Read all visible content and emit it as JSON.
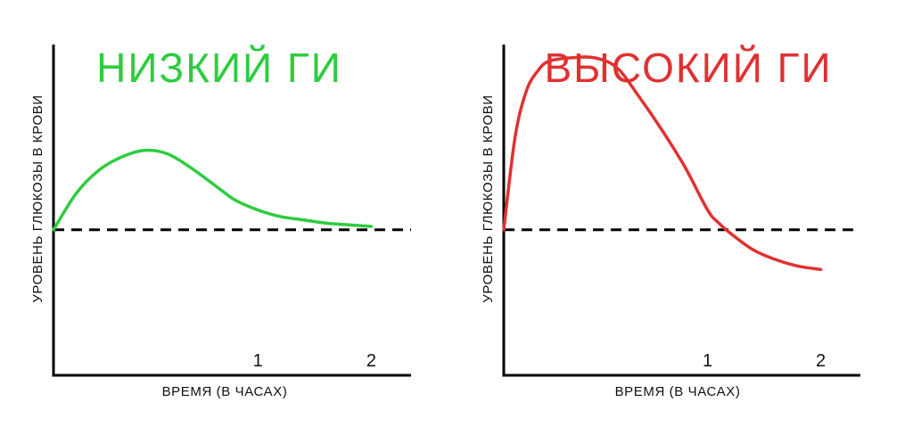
{
  "chart_data": [
    {
      "type": "line",
      "title": "НИЗКИЙ ГИ",
      "title_color": "#2ecc40",
      "line_color": "#2ecc40",
      "xlabel": "ВРЕМЯ (В ЧАСАХ)",
      "ylabel": "УРОВЕНЬ ГЛЮКОЗЫ В КРОВИ",
      "x_ticks": [
        "1",
        "2"
      ],
      "x_tick_values": [
        1,
        2
      ],
      "xlim": [
        -0.8,
        2.35
      ],
      "ylim": [
        0,
        1
      ],
      "baseline": 0.44,
      "baseline_style": "dashed",
      "grid": false,
      "series": [
        {
          "x": [
            -0.8,
            -0.6,
            -0.4,
            -0.2,
            0.0,
            0.2,
            0.4,
            0.6,
            0.8,
            1.0,
            1.2,
            1.4,
            1.6,
            1.8,
            2.0
          ],
          "y": [
            0.44,
            0.55,
            0.62,
            0.66,
            0.68,
            0.67,
            0.63,
            0.58,
            0.53,
            0.5,
            0.48,
            0.47,
            0.46,
            0.455,
            0.45
          ]
        }
      ]
    },
    {
      "type": "line",
      "title": "ВЫСОКИЙ ГИ",
      "title_color": "#e03131",
      "line_color": "#e03131",
      "xlabel": "ВРЕМЯ (В ЧАСАХ)",
      "ylabel": "УРОВЕНЬ ГЛЮКОЗЫ В КРОВИ",
      "x_ticks": [
        "1",
        "2"
      ],
      "x_tick_values": [
        1,
        2
      ],
      "xlim": [
        -0.8,
        2.35
      ],
      "ylim": [
        0,
        1
      ],
      "baseline": 0.44,
      "baseline_style": "dashed",
      "grid": false,
      "series": [
        {
          "x": [
            -0.8,
            -0.7,
            -0.6,
            -0.5,
            -0.4,
            -0.2,
            0.0,
            0.2,
            0.4,
            0.6,
            0.8,
            1.0,
            1.1,
            1.2,
            1.4,
            1.6,
            1.8,
            2.0
          ],
          "y": [
            0.44,
            0.72,
            0.86,
            0.92,
            0.95,
            0.96,
            0.96,
            0.93,
            0.84,
            0.74,
            0.63,
            0.5,
            0.46,
            0.43,
            0.38,
            0.35,
            0.33,
            0.32
          ]
        }
      ]
    }
  ]
}
